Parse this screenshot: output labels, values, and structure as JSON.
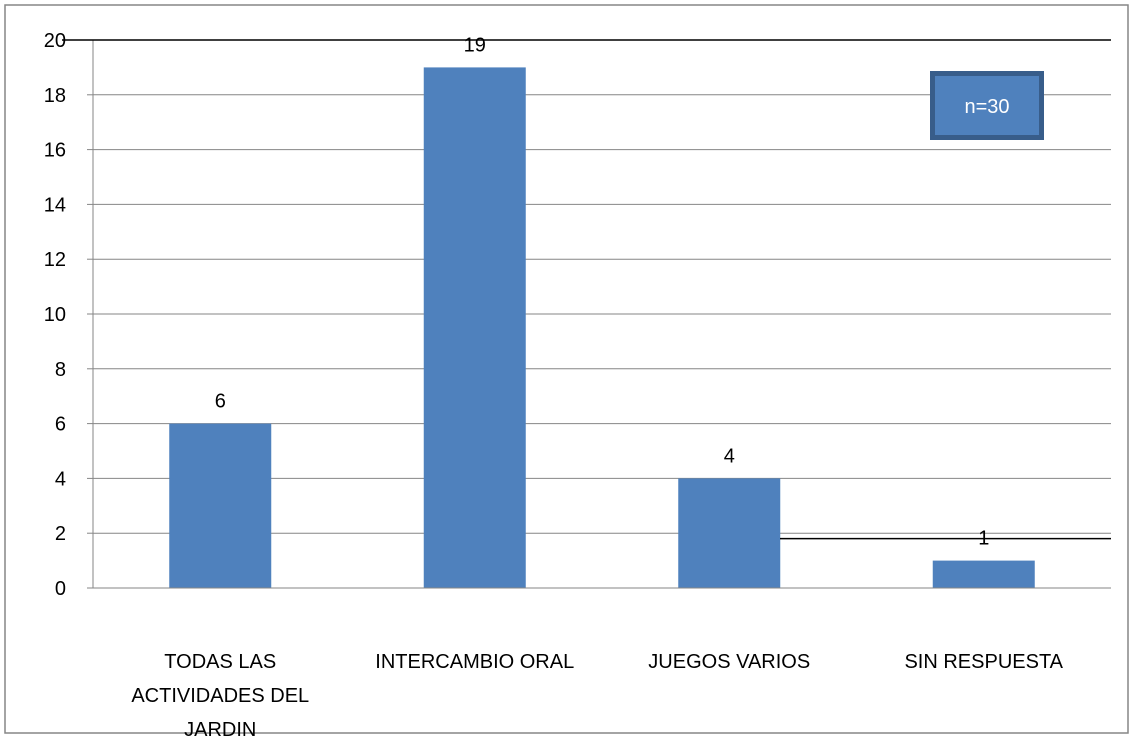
{
  "chart_data": {
    "type": "bar",
    "title": "",
    "xlabel": "",
    "ylabel": "",
    "ylim": [
      0,
      20
    ],
    "ytick_step": 2,
    "yticks": [
      "0",
      "2",
      "4",
      "6",
      "8",
      "10",
      "12",
      "14",
      "16",
      "18",
      "20"
    ],
    "grid": true,
    "categories": [
      [
        "TODAS LAS",
        "ACTIVIDADES DEL",
        "JARDIN"
      ],
      [
        "INTERCAMBIO ORAL"
      ],
      [
        "JUEGOS VARIOS"
      ],
      [
        "SIN RESPUESTA"
      ]
    ],
    "values": [
      6,
      19,
      4,
      1
    ],
    "data_labels": [
      "6",
      "19",
      "4",
      "1"
    ],
    "bar_color": "#4F81BD",
    "gridline_color": "#868686",
    "annotation": {
      "text": "n=30",
      "fill": "#4F81BD",
      "border": "#385D8A",
      "text_color": "#ffffff"
    }
  }
}
